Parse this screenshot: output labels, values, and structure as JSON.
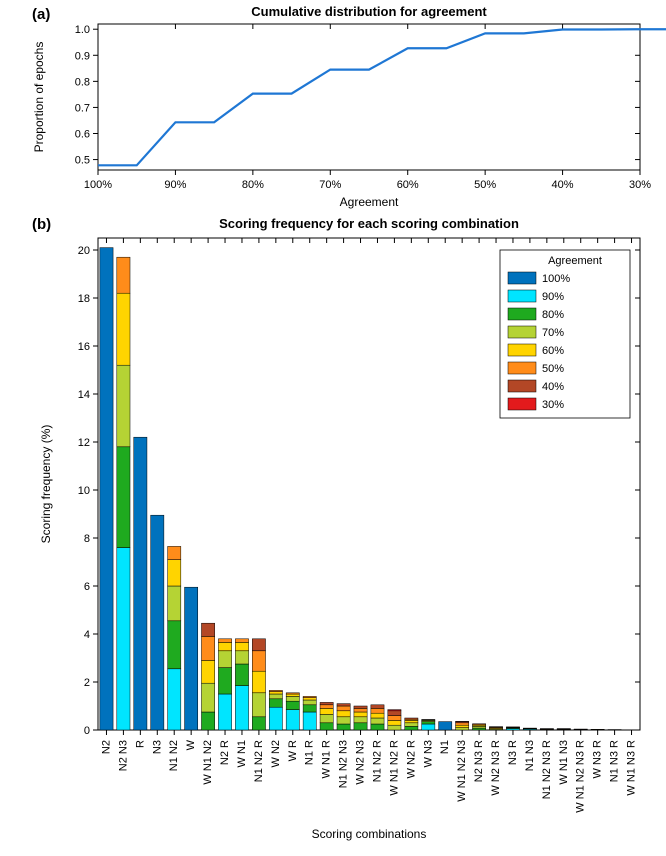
{
  "panel_a_label": "(a)",
  "panel_b_label": "(b)",
  "chart_a": {
    "type": "step-line",
    "title": "Cumulative distribution for agreement",
    "title_fontsize": 13,
    "xlabel": "Agreement",
    "ylabel": "Proportion of epochs",
    "label_fontsize": 12,
    "tick_fontsize": 11,
    "line_color": "#1f77d4",
    "line_width": 2.2,
    "background_color": "#ffffff",
    "axis_color": "#000000",
    "x_ticks": [
      "100%",
      "90%",
      "80%",
      "70%",
      "60%",
      "50%",
      "40%",
      "30%"
    ],
    "y_ticks": [
      0.5,
      0.6,
      0.7,
      0.8,
      0.9,
      1
    ],
    "ylim": [
      0.46,
      1.02
    ],
    "step_values": [
      0.478,
      0.478,
      0.643,
      0.643,
      0.753,
      0.753,
      0.845,
      0.845,
      0.927,
      0.927,
      0.984,
      0.984,
      0.999,
      0.999,
      1.0,
      1.0
    ]
  },
  "chart_b": {
    "type": "stacked-bar",
    "title": "Scoring frequency for each scoring combination",
    "title_fontsize": 13,
    "xlabel": "Scoring combinations",
    "ylabel": "Scoring frequency (%)",
    "label_fontsize": 12,
    "tick_fontsize": 11,
    "background_color": "#ffffff",
    "axis_color": "#000000",
    "ylim": [
      0,
      20.5
    ],
    "y_ticks": [
      0,
      2,
      4,
      6,
      8,
      10,
      12,
      14,
      16,
      18,
      20
    ],
    "legend_title": "Agreement",
    "legend_fontsize": 11,
    "bar_width": 0.78,
    "legend": [
      {
        "label": "100%",
        "color": "#0072bd"
      },
      {
        "label": "90%",
        "color": "#00e5ff"
      },
      {
        "label": "80%",
        "color": "#1faa1f"
      },
      {
        "label": "70%",
        "color": "#b5d334"
      },
      {
        "label": "60%",
        "color": "#ffd400"
      },
      {
        "label": "50%",
        "color": "#ff8c1a"
      },
      {
        "label": "40%",
        "color": "#b34726"
      },
      {
        "label": "30%",
        "color": "#e31a1c"
      }
    ],
    "categories": [
      "N2",
      "N2 N3",
      "R",
      "N3",
      "N1 N2",
      "W",
      "W N1 N2",
      "N2 R",
      "W N1",
      "N1 N2 R",
      "W N2",
      "W R",
      "N1 R",
      "W N1 R",
      "N1 N2 N3",
      "W N2 N3",
      "N1 N2 R",
      "W N1 N2 R",
      "W N2 R",
      "W N3",
      "N1",
      "W N1 N2 N3",
      "N2 N3 R",
      "W N2 N3 R",
      "N3 R",
      "N1 N3",
      "N1 N2 N3 R",
      "W N1 N3",
      "W N1 N2 N3 R",
      "W N3 R",
      "N1 N3 R",
      "W N1 N3 R"
    ],
    "stacks": [
      {
        "100": 20.1,
        "90": 0,
        "80": 0,
        "70": 0,
        "60": 0,
        "50": 0,
        "40": 0,
        "30": 0
      },
      {
        "100": 0,
        "90": 7.6,
        "80": 4.2,
        "70": 3.4,
        "60": 3.0,
        "50": 1.5,
        "40": 0,
        "30": 0
      },
      {
        "100": 12.2,
        "90": 0,
        "80": 0,
        "70": 0,
        "60": 0,
        "50": 0,
        "40": 0,
        "30": 0
      },
      {
        "100": 8.95,
        "90": 0,
        "80": 0,
        "70": 0,
        "60": 0,
        "50": 0,
        "40": 0,
        "30": 0
      },
      {
        "100": 0,
        "90": 2.55,
        "80": 2.0,
        "70": 1.45,
        "60": 1.1,
        "50": 0.55,
        "40": 0,
        "30": 0
      },
      {
        "100": 5.95,
        "90": 0,
        "80": 0,
        "70": 0,
        "60": 0,
        "50": 0,
        "40": 0,
        "30": 0
      },
      {
        "100": 0,
        "90": 0,
        "80": 0.75,
        "70": 1.2,
        "60": 0.95,
        "50": 1.0,
        "40": 0.55,
        "30": 0
      },
      {
        "100": 0,
        "90": 1.5,
        "80": 1.1,
        "70": 0.7,
        "60": 0.35,
        "50": 0.15,
        "40": 0,
        "30": 0
      },
      {
        "100": 0,
        "90": 1.85,
        "80": 0.9,
        "70": 0.55,
        "60": 0.35,
        "50": 0.15,
        "40": 0,
        "30": 0
      },
      {
        "100": 0,
        "90": 0,
        "80": 0.55,
        "70": 1.0,
        "60": 0.9,
        "50": 0.85,
        "40": 0.5,
        "30": 0
      },
      {
        "100": 0,
        "90": 0.95,
        "80": 0.35,
        "70": 0.2,
        "60": 0.1,
        "50": 0.05,
        "40": 0,
        "30": 0
      },
      {
        "100": 0,
        "90": 0.85,
        "80": 0.35,
        "70": 0.2,
        "60": 0.1,
        "50": 0.05,
        "40": 0,
        "30": 0
      },
      {
        "100": 0,
        "90": 0.75,
        "80": 0.3,
        "70": 0.2,
        "60": 0.1,
        "50": 0.05,
        "40": 0,
        "30": 0
      },
      {
        "100": 0,
        "90": 0,
        "80": 0.3,
        "70": 0.35,
        "60": 0.25,
        "50": 0.15,
        "40": 0.1,
        "30": 0
      },
      {
        "100": 0,
        "90": 0,
        "80": 0.25,
        "70": 0.3,
        "60": 0.25,
        "50": 0.2,
        "40": 0.1,
        "30": 0
      },
      {
        "100": 0,
        "90": 0,
        "80": 0.3,
        "70": 0.25,
        "60": 0.2,
        "50": 0.15,
        "40": 0.1,
        "30": 0
      },
      {
        "100": 0,
        "90": 0,
        "80": 0.25,
        "70": 0.25,
        "60": 0.2,
        "50": 0.2,
        "40": 0.15,
        "30": 0
      },
      {
        "100": 0,
        "90": 0,
        "80": 0,
        "70": 0.2,
        "60": 0.2,
        "50": 0.2,
        "40": 0.2,
        "30": 0.05
      },
      {
        "100": 0,
        "90": 0,
        "80": 0.15,
        "70": 0.15,
        "60": 0.1,
        "50": 0.05,
        "40": 0.05,
        "30": 0
      },
      {
        "100": 0,
        "90": 0.25,
        "80": 0.1,
        "70": 0.05,
        "60": 0.02,
        "50": 0.02,
        "40": 0,
        "30": 0
      },
      {
        "100": 0.35,
        "90": 0,
        "80": 0,
        "70": 0,
        "60": 0,
        "50": 0,
        "40": 0,
        "30": 0
      },
      {
        "100": 0,
        "90": 0,
        "80": 0,
        "70": 0.1,
        "60": 0.1,
        "50": 0.1,
        "40": 0.05,
        "30": 0.01
      },
      {
        "100": 0,
        "90": 0,
        "80": 0.08,
        "70": 0.07,
        "60": 0.05,
        "50": 0.04,
        "40": 0.02,
        "30": 0
      },
      {
        "100": 0,
        "90": 0,
        "80": 0,
        "70": 0.04,
        "60": 0.04,
        "50": 0.03,
        "40": 0.02,
        "30": 0.01
      },
      {
        "100": 0,
        "90": 0.06,
        "80": 0.03,
        "70": 0.02,
        "60": 0.01,
        "50": 0.01,
        "40": 0,
        "30": 0
      },
      {
        "100": 0,
        "90": 0.04,
        "80": 0.02,
        "70": 0.01,
        "60": 0.01,
        "50": 0,
        "40": 0,
        "30": 0
      },
      {
        "100": 0,
        "90": 0,
        "80": 0,
        "70": 0.02,
        "60": 0.02,
        "50": 0.01,
        "40": 0.01,
        "30": 0
      },
      {
        "100": 0,
        "90": 0,
        "80": 0.02,
        "70": 0.01,
        "60": 0.01,
        "50": 0.01,
        "40": 0.01,
        "30": 0
      },
      {
        "100": 0,
        "90": 0,
        "80": 0,
        "70": 0,
        "60": 0.01,
        "50": 0.01,
        "40": 0.01,
        "30": 0.01
      },
      {
        "100": 0,
        "90": 0,
        "80": 0.01,
        "70": 0.01,
        "60": 0.01,
        "50": 0,
        "40": 0,
        "30": 0
      },
      {
        "100": 0,
        "90": 0,
        "80": 0.01,
        "70": 0.01,
        "60": 0,
        "50": 0,
        "40": 0,
        "30": 0
      },
      {
        "100": 0,
        "90": 0,
        "80": 0,
        "70": 0,
        "60": 0.01,
        "50": 0,
        "40": 0,
        "30": 0
      }
    ]
  }
}
